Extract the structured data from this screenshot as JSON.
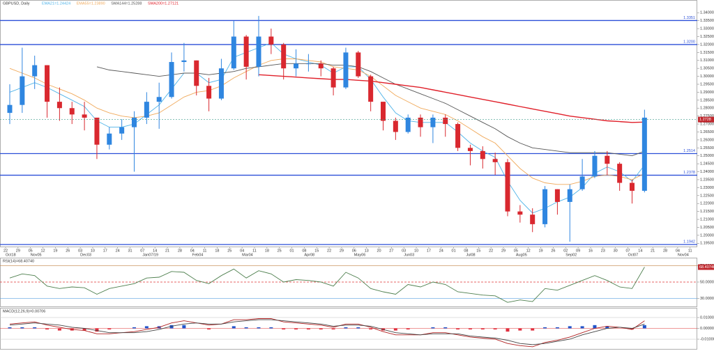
{
  "chart_data": [
    {
      "type": "candlestick",
      "title": "GBPUSD, Daily",
      "categories": [
        "22",
        "29",
        "05",
        "12",
        "19",
        "26",
        "03",
        "10",
        "17",
        "24",
        "31",
        "07",
        "14",
        "21",
        "28",
        "04",
        "11",
        "18",
        "25",
        "04",
        "11",
        "18",
        "25",
        "01",
        "08",
        "15",
        "22",
        "29",
        "06",
        "13",
        "20",
        "27",
        "03",
        "10",
        "17",
        "24",
        "01",
        "08",
        "15",
        "22",
        "29",
        "05",
        "12",
        "19",
        "26",
        "02",
        "09",
        "16",
        "23",
        "30",
        "07",
        "14",
        "21",
        "28",
        "04",
        "11"
      ],
      "category_months": [
        "Oct18",
        null,
        "Nov05",
        null,
        null,
        null,
        "Dec03",
        null,
        null,
        null,
        null,
        "Jan07/19",
        null,
        null,
        null,
        "Feb04",
        null,
        null,
        null,
        "Mar04",
        null,
        null,
        null,
        null,
        "Apr08",
        null,
        null,
        null,
        "May06",
        null,
        null,
        null,
        "Jun03",
        null,
        null,
        null,
        null,
        "Jul08",
        null,
        null,
        null,
        "Aug05",
        null,
        null,
        null,
        "Sep02",
        null,
        null,
        null,
        null,
        "Oct07",
        null,
        null,
        null,
        "Nov04",
        null
      ],
      "open": [
        1.277,
        1.282,
        1.3,
        1.307,
        1.284,
        1.28,
        1.276,
        1.274,
        1.257,
        1.264,
        1.268,
        1.274,
        1.284,
        1.287,
        1.309,
        1.31,
        1.294,
        1.286,
        1.305,
        1.325,
        1.306,
        1.325,
        1.32,
        1.305,
        1.308,
        1.308,
        1.305,
        1.293,
        1.315,
        1.3,
        1.284,
        1.272,
        1.265,
        1.274,
        1.268,
        1.274,
        1.27,
        1.255,
        1.253,
        1.248,
        1.246,
        1.215,
        1.213,
        1.207,
        1.229,
        1.221,
        1.229,
        1.237,
        1.25,
        1.245,
        1.233,
        1.228,
        null,
        null,
        null,
        null
      ],
      "high": [
        1.295,
        1.318,
        1.313,
        1.307,
        1.293,
        1.284,
        1.284,
        1.274,
        1.268,
        1.273,
        1.278,
        1.29,
        1.296,
        1.315,
        1.321,
        1.31,
        1.299,
        1.311,
        1.335,
        1.326,
        1.338,
        1.33,
        1.321,
        1.317,
        1.314,
        1.31,
        1.306,
        1.318,
        1.316,
        1.301,
        1.284,
        1.274,
        1.276,
        1.276,
        1.276,
        1.276,
        1.271,
        1.257,
        1.256,
        1.252,
        1.248,
        1.219,
        1.217,
        1.231,
        1.229,
        1.232,
        1.248,
        1.253,
        1.253,
        1.246,
        1.235,
        1.279,
        null,
        null,
        null,
        null
      ],
      "low": [
        1.27,
        1.277,
        1.292,
        1.274,
        1.272,
        1.27,
        1.266,
        1.248,
        1.254,
        1.26,
        1.24,
        1.27,
        1.267,
        1.286,
        1.303,
        1.288,
        1.278,
        1.285,
        1.304,
        1.298,
        1.3,
        1.314,
        1.298,
        1.3,
        1.303,
        1.3,
        1.288,
        1.292,
        1.299,
        1.278,
        1.266,
        1.26,
        1.264,
        1.262,
        1.258,
        1.262,
        1.253,
        1.244,
        1.242,
        1.238,
        1.212,
        1.208,
        1.202,
        1.205,
        1.213,
        1.196,
        1.228,
        1.236,
        1.238,
        1.228,
        1.22,
        1.227,
        null,
        null,
        null,
        null
      ],
      "close": [
        1.282,
        1.3,
        1.307,
        1.284,
        1.28,
        1.276,
        1.274,
        1.257,
        1.264,
        1.268,
        1.274,
        1.284,
        1.287,
        1.309,
        1.31,
        1.294,
        1.286,
        1.305,
        1.325,
        1.306,
        1.325,
        1.32,
        1.305,
        1.308,
        1.308,
        1.305,
        1.293,
        1.315,
        1.3,
        1.284,
        1.272,
        1.265,
        1.274,
        1.268,
        1.274,
        1.27,
        1.255,
        1.253,
        1.248,
        1.246,
        1.215,
        1.213,
        1.207,
        1.229,
        1.221,
        1.229,
        1.237,
        1.25,
        1.245,
        1.233,
        1.228,
        1.274,
        null,
        null,
        null,
        null
      ],
      "up_color": "#2f86e0",
      "down_color": "#d9282f",
      "series": [
        {
          "name": "EMA21=1.24424",
          "color": "#4fb3e8",
          "values": [
            1.29,
            1.293,
            1.296,
            1.293,
            1.289,
            1.285,
            1.281,
            1.272,
            1.268,
            1.268,
            1.27,
            1.276,
            1.282,
            1.292,
            1.302,
            1.302,
            1.296,
            1.298,
            1.312,
            1.315,
            1.318,
            1.321,
            1.314,
            1.311,
            1.309,
            1.307,
            1.302,
            1.306,
            1.306,
            1.298,
            1.287,
            1.277,
            1.272,
            1.271,
            1.271,
            1.271,
            1.265,
            1.258,
            1.253,
            1.249,
            1.234,
            1.222,
            1.214,
            1.217,
            1.221,
            1.224,
            1.23,
            1.239,
            1.243,
            1.24,
            1.234,
            1.2442,
            null,
            null,
            null,
            null
          ]
        },
        {
          "name": "EMA55=1.23890",
          "color": "#f0a95a",
          "values": [
            1.305,
            1.302,
            1.299,
            1.295,
            1.292,
            1.289,
            1.285,
            1.28,
            1.277,
            1.275,
            1.274,
            1.275,
            1.277,
            1.282,
            1.287,
            1.29,
            1.291,
            1.294,
            1.299,
            1.303,
            1.307,
            1.31,
            1.311,
            1.311,
            1.31,
            1.309,
            1.306,
            1.305,
            1.304,
            1.3,
            1.294,
            1.288,
            1.284,
            1.28,
            1.278,
            1.276,
            1.272,
            1.267,
            1.262,
            1.258,
            1.25,
            1.242,
            1.236,
            1.233,
            1.232,
            1.232,
            1.234,
            1.237,
            1.238,
            1.237,
            1.235,
            1.2389,
            null,
            null,
            null,
            null
          ]
        },
        {
          "name": "SMA144=1.25288",
          "color": "#555555",
          "values": [
            null,
            null,
            null,
            null,
            null,
            null,
            null,
            1.306,
            1.304,
            1.303,
            1.302,
            1.301,
            1.3,
            1.301,
            1.302,
            1.302,
            1.301,
            1.302,
            1.303,
            1.305,
            1.306,
            1.307,
            1.308,
            1.308,
            1.308,
            1.308,
            1.307,
            1.307,
            1.306,
            1.303,
            1.299,
            1.295,
            1.292,
            1.289,
            1.286,
            1.283,
            1.279,
            1.275,
            1.271,
            1.267,
            1.262,
            1.258,
            1.255,
            1.254,
            1.253,
            1.252,
            1.252,
            1.252,
            1.252,
            1.251,
            1.25,
            1.2529,
            null,
            null,
            null,
            null
          ]
        },
        {
          "name": "SMA200=1.27121",
          "color": "#e0202a",
          "values": [
            null,
            null,
            null,
            null,
            null,
            null,
            null,
            null,
            null,
            null,
            null,
            null,
            null,
            null,
            null,
            null,
            null,
            null,
            null,
            null,
            1.301,
            1.3005,
            1.3,
            1.2995,
            1.299,
            1.2985,
            1.298,
            1.298,
            1.2975,
            1.297,
            1.296,
            1.295,
            1.294,
            1.293,
            1.2915,
            1.29,
            1.2885,
            1.287,
            1.2855,
            1.284,
            1.2825,
            1.281,
            1.2795,
            1.278,
            1.2765,
            1.275,
            1.274,
            1.273,
            1.272,
            1.2715,
            1.271,
            1.2712,
            null,
            null,
            null,
            null
          ]
        }
      ],
      "ylim": [
        1.1925,
        1.348
      ],
      "yticks": [
        {
          "value": 1.34,
          "label": "1.34000"
        },
        {
          "value": 1.335,
          "label": "1.33500"
        },
        {
          "value": 1.33,
          "label": "1.33000"
        },
        {
          "value": 1.325,
          "label": "1.32500"
        },
        {
          "value": 1.32,
          "label": "1.32000"
        },
        {
          "value": 1.315,
          "label": "1.31500"
        },
        {
          "value": 1.31,
          "label": "1.31000"
        },
        {
          "value": 1.305,
          "label": "1.30500"
        },
        {
          "value": 1.3,
          "label": "1.30000"
        },
        {
          "value": 1.295,
          "label": "1.29500"
        },
        {
          "value": 1.29,
          "label": "1.29000"
        },
        {
          "value": 1.285,
          "label": "1.28500"
        },
        {
          "value": 1.28,
          "label": "1.28000"
        },
        {
          "value": 1.275,
          "label": "1.27500"
        },
        {
          "value": 1.27,
          "label": "1.27000"
        },
        {
          "value": 1.265,
          "label": "1.26500"
        },
        {
          "value": 1.26,
          "label": "1.26000"
        },
        {
          "value": 1.255,
          "label": "1.25500"
        },
        {
          "value": 1.25,
          "label": "1.25000"
        },
        {
          "value": 1.245,
          "label": "1.24500"
        },
        {
          "value": 1.24,
          "label": "1.24000"
        },
        {
          "value": 1.235,
          "label": "1.23500"
        },
        {
          "value": 1.23,
          "label": "1.23000"
        },
        {
          "value": 1.225,
          "label": "1.22500"
        },
        {
          "value": 1.22,
          "label": "1.22000"
        },
        {
          "value": 1.215,
          "label": "1.21500"
        },
        {
          "value": 1.21,
          "label": "1.21000"
        },
        {
          "value": 1.205,
          "label": "1.20500"
        },
        {
          "value": 1.2,
          "label": "1.20000"
        },
        {
          "value": 1.195,
          "label": "1.19500"
        }
      ],
      "levels": [
        1.3351,
        {
          "value": 1.32,
          "label": "1.3200"
        },
        1.2514,
        1.2378,
        1.1942
      ],
      "level_color": "#2b4fd8",
      "last_price": 1.2728,
      "last_price_color": "#c0282e"
    },
    {
      "type": "line",
      "title": "RSI(14)=68.40740",
      "series": [
        {
          "color": "#4d7f4d",
          "values": [
            55,
            60,
            58,
            45,
            42,
            44,
            43,
            35,
            42,
            45,
            48,
            55,
            56,
            63,
            62,
            52,
            48,
            58,
            66,
            55,
            64,
            60,
            50,
            53,
            52,
            50,
            45,
            62,
            55,
            42,
            38,
            35,
            47,
            44,
            50,
            47,
            38,
            36,
            34,
            33,
            25,
            28,
            26,
            42,
            40,
            46,
            52,
            58,
            52,
            44,
            42,
            68.4074,
            null,
            null,
            null,
            null
          ],
          "value_labels": [
            null,
            null,
            null,
            null,
            null,
            null,
            null,
            null,
            null,
            null,
            null,
            null,
            null,
            null,
            null,
            null,
            null,
            null,
            null,
            null,
            null,
            null,
            null,
            null,
            null,
            null,
            null,
            null,
            null,
            null,
            null,
            null,
            null,
            null,
            null,
            null,
            null,
            null,
            null,
            null,
            null,
            null,
            null,
            null,
            null,
            null,
            null,
            null,
            null,
            null,
            null,
            "68.40740",
            null,
            null,
            null,
            null
          ]
        }
      ],
      "ylim": [
        20,
        80
      ],
      "yticks": [
        {
          "value": 70,
          "label": "70.00000"
        },
        {
          "value": 50,
          "label": "50.00000"
        },
        {
          "value": 30,
          "label": "30.00000"
        }
      ],
      "ytick_colors": [
        "#c08040",
        "#e03030",
        "#5aa0e0"
      ]
    },
    {
      "type": "bar",
      "title": "MACD(12,26,9)=0.00706",
      "values": [
        0.001,
        0.001,
        0.001,
        -0.001,
        -0.002,
        -0.002,
        -0.002,
        -0.003,
        -0.001,
        0,
        0.001,
        0.002,
        0.002,
        0.003,
        0.003,
        0,
        -0.001,
        0,
        0.002,
        0.001,
        0.001,
        0.001,
        -0.001,
        -0.001,
        -0.001,
        -0.001,
        -0.001,
        0.001,
        0.001,
        -0.001,
        -0.002,
        -0.002,
        -0.001,
        0,
        0.001,
        0.001,
        -0.001,
        -0.001,
        -0.001,
        -0.001,
        -0.003,
        -0.002,
        -0.002,
        0.001,
        0.001,
        0.002,
        0.002,
        0.003,
        0.002,
        0,
        -0.001,
        0.003,
        null,
        null,
        null,
        null
      ],
      "positive_color": "#2255cc",
      "negative_color": "#e03040",
      "series": [
        {
          "color": "#b02020",
          "values": [
            0.004,
            0.005,
            0.006,
            0.003,
            0.001,
            -0.001,
            -0.002,
            -0.005,
            -0.005,
            -0.004,
            -0.003,
            -0.001,
            0.001,
            0.005,
            0.007,
            0.005,
            0.003,
            0.004,
            0.008,
            0.008,
            0.009,
            0.009,
            0.006,
            0.005,
            0.004,
            0.003,
            0.001,
            0.004,
            0.004,
            0.001,
            -0.003,
            -0.006,
            -0.006,
            -0.006,
            -0.004,
            -0.004,
            -0.006,
            -0.008,
            -0.009,
            -0.01,
            -0.014,
            -0.016,
            -0.017,
            -0.013,
            -0.011,
            -0.008,
            -0.004,
            0.0,
            0.002,
            0.001,
            -0.001,
            0.007,
            null,
            null,
            null,
            null
          ]
        },
        {
          "color": "#444444",
          "values": [
            0.003,
            0.004,
            0.005,
            0.004,
            0.003,
            0.001,
            0.0,
            -0.002,
            -0.004,
            -0.004,
            -0.004,
            -0.003,
            -0.001,
            0.002,
            0.004,
            0.005,
            0.004,
            0.004,
            0.006,
            0.007,
            0.008,
            0.008,
            0.007,
            0.006,
            0.005,
            0.004,
            0.002,
            0.003,
            0.003,
            0.002,
            -0.001,
            -0.004,
            -0.005,
            -0.006,
            -0.005,
            -0.005,
            -0.005,
            -0.007,
            -0.008,
            -0.009,
            -0.011,
            -0.014,
            -0.015,
            -0.014,
            -0.012,
            -0.01,
            -0.006,
            -0.003,
            0.0,
            0.001,
            0.0,
            0.004,
            null,
            null,
            null,
            null
          ]
        }
      ],
      "ylim": [
        -0.019,
        0.019
      ],
      "yticks": [
        {
          "value": 0.01,
          "label": "0.01000"
        },
        {
          "value": 0,
          "label": "0.00000"
        },
        {
          "value": -0.01,
          "label": "-0.01000"
        }
      ],
      "ytick_colors": [
        "#cccccc",
        "#e03030",
        "#cccccc"
      ]
    }
  ]
}
